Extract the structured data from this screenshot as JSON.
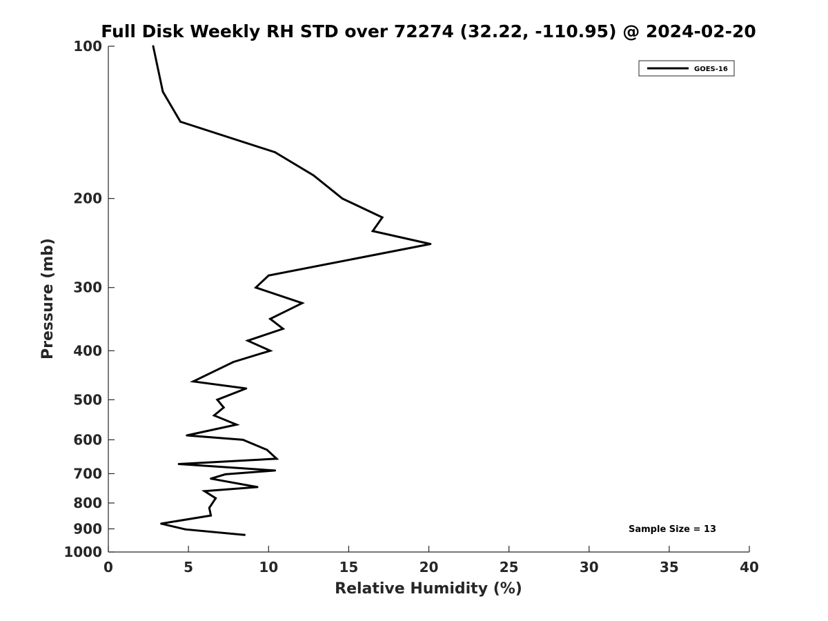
{
  "chart_data": {
    "type": "line",
    "title": "Full Disk Weekly RH STD over 72274 (32.22, -110.95) @ 2024-02-20",
    "xlabel": "Relative Humidity (%)",
    "ylabel": "Pressure (mb)",
    "xlim": [
      0,
      40
    ],
    "ylim": [
      100,
      1000
    ],
    "y_scale": "log",
    "y_reversed": true,
    "xticks": [
      0,
      5,
      10,
      15,
      20,
      25,
      30,
      35,
      40
    ],
    "xtick_labels": [
      "0",
      "5",
      "10",
      "15",
      "20",
      "25",
      "30",
      "35",
      "40"
    ],
    "yticks": [
      100,
      200,
      300,
      400,
      500,
      600,
      700,
      800,
      900,
      1000
    ],
    "ytick_labels": [
      "100",
      "200",
      "300",
      "400",
      "500",
      "600",
      "700",
      "800",
      "900",
      "1000"
    ],
    "grid": false,
    "legend_position": "top-right",
    "series": [
      {
        "name": "GOES-16",
        "color": "#000000",
        "points": [
          {
            "x": 2.8,
            "p": 100
          },
          {
            "x": 3.4,
            "p": 123
          },
          {
            "x": 4.5,
            "p": 141
          },
          {
            "x": 10.4,
            "p": 162
          },
          {
            "x": 12.8,
            "p": 180
          },
          {
            "x": 14.6,
            "p": 200
          },
          {
            "x": 17.1,
            "p": 218
          },
          {
            "x": 16.5,
            "p": 232
          },
          {
            "x": 20.1,
            "p": 246
          },
          {
            "x": 10.0,
            "p": 284
          },
          {
            "x": 9.2,
            "p": 300
          },
          {
            "x": 12.1,
            "p": 322
          },
          {
            "x": 10.1,
            "p": 346
          },
          {
            "x": 10.9,
            "p": 362
          },
          {
            "x": 8.7,
            "p": 382
          },
          {
            "x": 10.1,
            "p": 400
          },
          {
            "x": 7.8,
            "p": 421
          },
          {
            "x": 5.3,
            "p": 460
          },
          {
            "x": 8.6,
            "p": 475
          },
          {
            "x": 6.8,
            "p": 500
          },
          {
            "x": 7.2,
            "p": 518
          },
          {
            "x": 6.6,
            "p": 537
          },
          {
            "x": 8.0,
            "p": 560
          },
          {
            "x": 4.9,
            "p": 588
          },
          {
            "x": 8.4,
            "p": 600
          },
          {
            "x": 9.9,
            "p": 628
          },
          {
            "x": 10.5,
            "p": 654
          },
          {
            "x": 4.4,
            "p": 670
          },
          {
            "x": 10.4,
            "p": 690
          },
          {
            "x": 7.3,
            "p": 702
          },
          {
            "x": 6.4,
            "p": 716
          },
          {
            "x": 9.3,
            "p": 744
          },
          {
            "x": 6.0,
            "p": 758
          },
          {
            "x": 6.7,
            "p": 783
          },
          {
            "x": 6.3,
            "p": 818
          },
          {
            "x": 6.4,
            "p": 847
          },
          {
            "x": 3.3,
            "p": 879
          },
          {
            "x": 4.8,
            "p": 902
          },
          {
            "x": 8.5,
            "p": 925
          }
        ]
      }
    ],
    "annotation": "Sample Size = 13"
  }
}
